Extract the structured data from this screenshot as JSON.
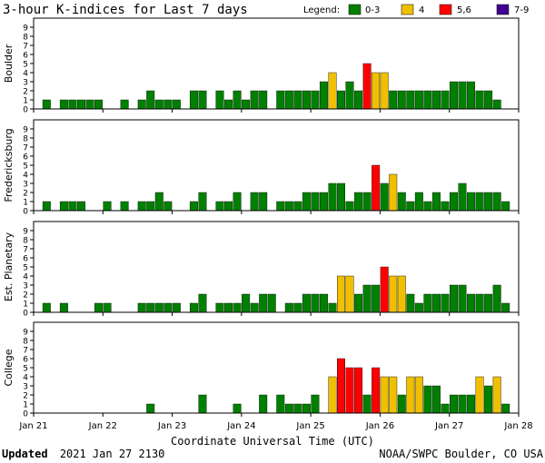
{
  "header": {
    "title": "3-hour K-indices for Last 7 days",
    "legend_label": "Legend:",
    "legend": [
      {
        "label": "0-3",
        "color": "#008000"
      },
      {
        "label": "4",
        "color": "#f0c000"
      },
      {
        "label": "5,6",
        "color": "#ff0000"
      },
      {
        "label": "7-9",
        "color": "#400090"
      }
    ]
  },
  "footer": {
    "updated_label": "Updated",
    "updated_value": "2021 Jan 27 2130",
    "credit": "NOAA/SWPC Boulder, CO USA"
  },
  "chart_data": {
    "type": "bar",
    "xlabel": "Coordinate Universal Time (UTC)",
    "x_ticks": [
      "Jan 21",
      "Jan 22",
      "Jan 23",
      "Jan 24",
      "Jan 25",
      "Jan 26",
      "Jan 27",
      "Jan 28"
    ],
    "y_ticks": [
      "0",
      "1",
      "2",
      "3",
      "4",
      "5",
      "6",
      "7",
      "8",
      "9"
    ],
    "ylim": [
      0,
      9
    ],
    "grid": false,
    "bins_per_day": 8,
    "colors": {
      "low": "#008000",
      "four": "#f0c000",
      "storm": "#ff0000",
      "severe": "#400090",
      "outline": "#000000"
    },
    "series": [
      {
        "name": "Boulder",
        "values": [
          0,
          1,
          0,
          1,
          1,
          1,
          1,
          1,
          0,
          0,
          1,
          0,
          1,
          2,
          1,
          1,
          1,
          0,
          2,
          2,
          0,
          2,
          1,
          2,
          1,
          2,
          2,
          0,
          2,
          2,
          2,
          2,
          2,
          3,
          4,
          2,
          3,
          2,
          5,
          4,
          4,
          2,
          2,
          2,
          2,
          2,
          2,
          2,
          3,
          3,
          3,
          2,
          2,
          1,
          0
        ]
      },
      {
        "name": "Fredericksburg",
        "values": [
          0,
          1,
          0,
          1,
          1,
          1,
          0,
          0,
          1,
          0,
          1,
          0,
          1,
          1,
          2,
          1,
          0,
          0,
          1,
          2,
          0,
          1,
          1,
          2,
          0,
          2,
          2,
          0,
          1,
          1,
          1,
          2,
          2,
          2,
          3,
          3,
          1,
          2,
          2,
          5,
          3,
          4,
          2,
          1,
          2,
          1,
          2,
          1,
          2,
          3,
          2,
          2,
          2,
          2,
          1,
          0
        ]
      },
      {
        "name": "Est. Planetary",
        "values": [
          0,
          1,
          0,
          1,
          0,
          0,
          0,
          1,
          1,
          0,
          0,
          0,
          1,
          1,
          1,
          1,
          1,
          0,
          1,
          2,
          0,
          1,
          1,
          1,
          2,
          1,
          2,
          2,
          0,
          1,
          1,
          2,
          2,
          2,
          1,
          4,
          4,
          2,
          3,
          3,
          5,
          4,
          4,
          2,
          1,
          2,
          2,
          2,
          3,
          3,
          2,
          2,
          2,
          3,
          1
        ]
      },
      {
        "name": "College",
        "values": [
          0,
          0,
          0,
          0,
          0,
          0,
          0,
          0,
          0,
          0,
          0,
          0,
          0,
          1,
          0,
          0,
          0,
          0,
          0,
          2,
          0,
          0,
          0,
          1,
          0,
          0,
          2,
          0,
          2,
          1,
          1,
          1,
          2,
          0,
          4,
          6,
          5,
          5,
          2,
          5,
          4,
          4,
          2,
          4,
          4,
          3,
          3,
          1,
          2,
          2,
          2,
          4,
          3,
          4,
          1
        ]
      }
    ]
  }
}
